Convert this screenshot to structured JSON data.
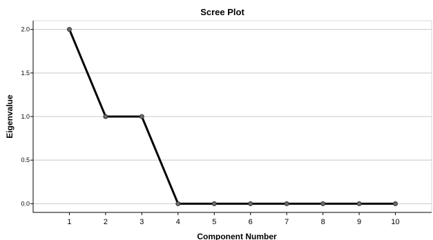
{
  "chart_data": {
    "type": "line",
    "title": "Scree Plot",
    "xlabel": "Component Number",
    "ylabel": "Eigenvalue",
    "x": [
      "1",
      "2",
      "3",
      "4",
      "5",
      "6",
      "7",
      "8",
      "9",
      "10"
    ],
    "series": [
      {
        "values": [
          2.0,
          1.0,
          1.0,
          0.0,
          0.0,
          0.0,
          0.0,
          0.0,
          0.0,
          0.0
        ]
      }
    ],
    "yticks": [
      "0.0",
      "0.5",
      "1.0",
      "1.5",
      "2.0"
    ],
    "ytick_values": [
      0.0,
      0.5,
      1.0,
      1.5,
      2.0
    ],
    "ylim": [
      -0.1,
      2.1
    ],
    "xlim": [
      0,
      11
    ],
    "grid": true,
    "line_color": "#000000",
    "marker_color": "#6b6b6b"
  }
}
